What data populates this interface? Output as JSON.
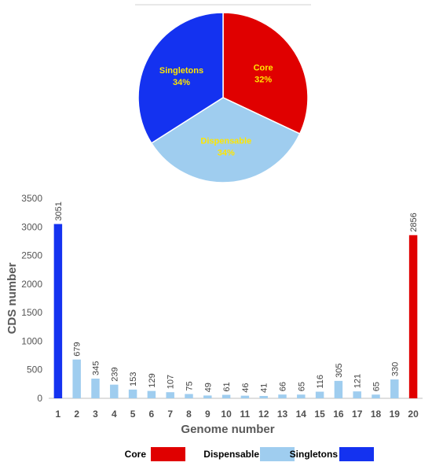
{
  "chart_data": [
    {
      "type": "pie",
      "slices": [
        {
          "label": "Core",
          "percent_label": "32%",
          "value": 32,
          "color": "#e00000",
          "text_color": "#ffe600"
        },
        {
          "label": "Dispensable",
          "percent_label": "34%",
          "value": 34,
          "color": "#9fcdef",
          "text_color": "#ffe600"
        },
        {
          "label": "Singletons",
          "percent_label": "34%",
          "value": 34,
          "color": "#1432f0",
          "text_color": "#ffe600"
        }
      ]
    },
    {
      "type": "bar",
      "xlabel": "Genome number",
      "ylabel": "CDS number",
      "ylim": [
        0,
        3500
      ],
      "yticks": [
        0,
        500,
        1000,
        1500,
        2000,
        2500,
        3000,
        3500
      ],
      "grid": false,
      "categories": [
        "1",
        "2",
        "3",
        "4",
        "5",
        "6",
        "7",
        "8",
        "9",
        "10",
        "11",
        "12",
        "13",
        "14",
        "15",
        "16",
        "17",
        "18",
        "19",
        "20"
      ],
      "values": [
        3051,
        679,
        345,
        239,
        153,
        129,
        107,
        75,
        49,
        61,
        46,
        41,
        66,
        65,
        116,
        305,
        121,
        65,
        330,
        2856
      ],
      "data_labels": [
        "3051",
        "679",
        "345",
        "239",
        "153",
        "129",
        "107",
        "75",
        "49",
        "61",
        "46",
        "41",
        "66",
        "65",
        "116",
        "305",
        "121",
        "65",
        "330",
        "2856"
      ],
      "bar_groups": [
        "Singletons",
        "Dispensable",
        "Dispensable",
        "Dispensable",
        "Dispensable",
        "Dispensable",
        "Dispensable",
        "Dispensable",
        "Dispensable",
        "Dispensable",
        "Dispensable",
        "Dispensable",
        "Dispensable",
        "Dispensable",
        "Dispensable",
        "Dispensable",
        "Dispensable",
        "Dispensable",
        "Dispensable",
        "Core"
      ],
      "legend": {
        "placement": "bottom",
        "items": [
          {
            "label": "Core",
            "color": "#e00000"
          },
          {
            "label": "Dispensable",
            "color": "#9fcdef"
          },
          {
            "label": "Singletons",
            "color": "#1432f0"
          }
        ]
      }
    }
  ]
}
